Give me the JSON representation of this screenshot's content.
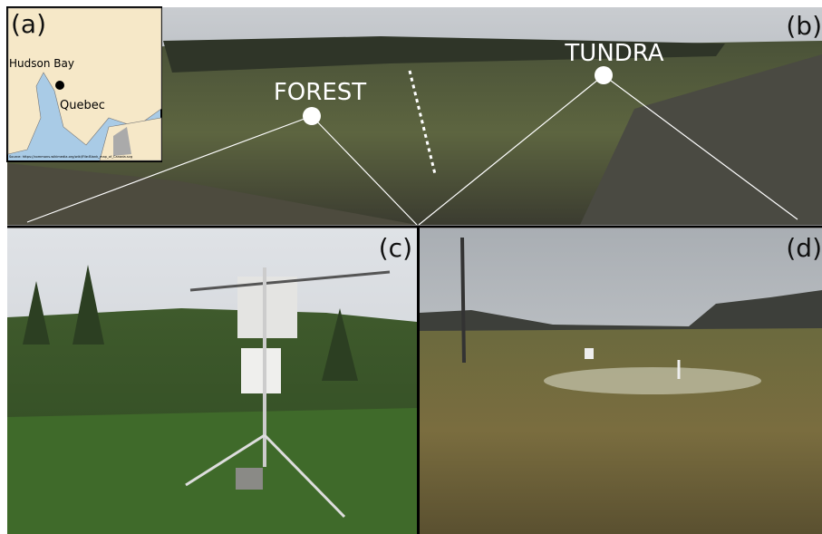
{
  "panels": [
    {
      "label": "(a)",
      "map_labels": [
        "Hudson Bay",
        "Quebec"
      ],
      "source": "Source: https://commons.wikimedia.org/wiki/File:Blank_map_of_Canada.svg"
    },
    {
      "label": "(b)",
      "sites": [
        "FOREST",
        "TUNDRA"
      ]
    },
    {
      "label": "(c)"
    },
    {
      "label": "(d)"
    }
  ]
}
